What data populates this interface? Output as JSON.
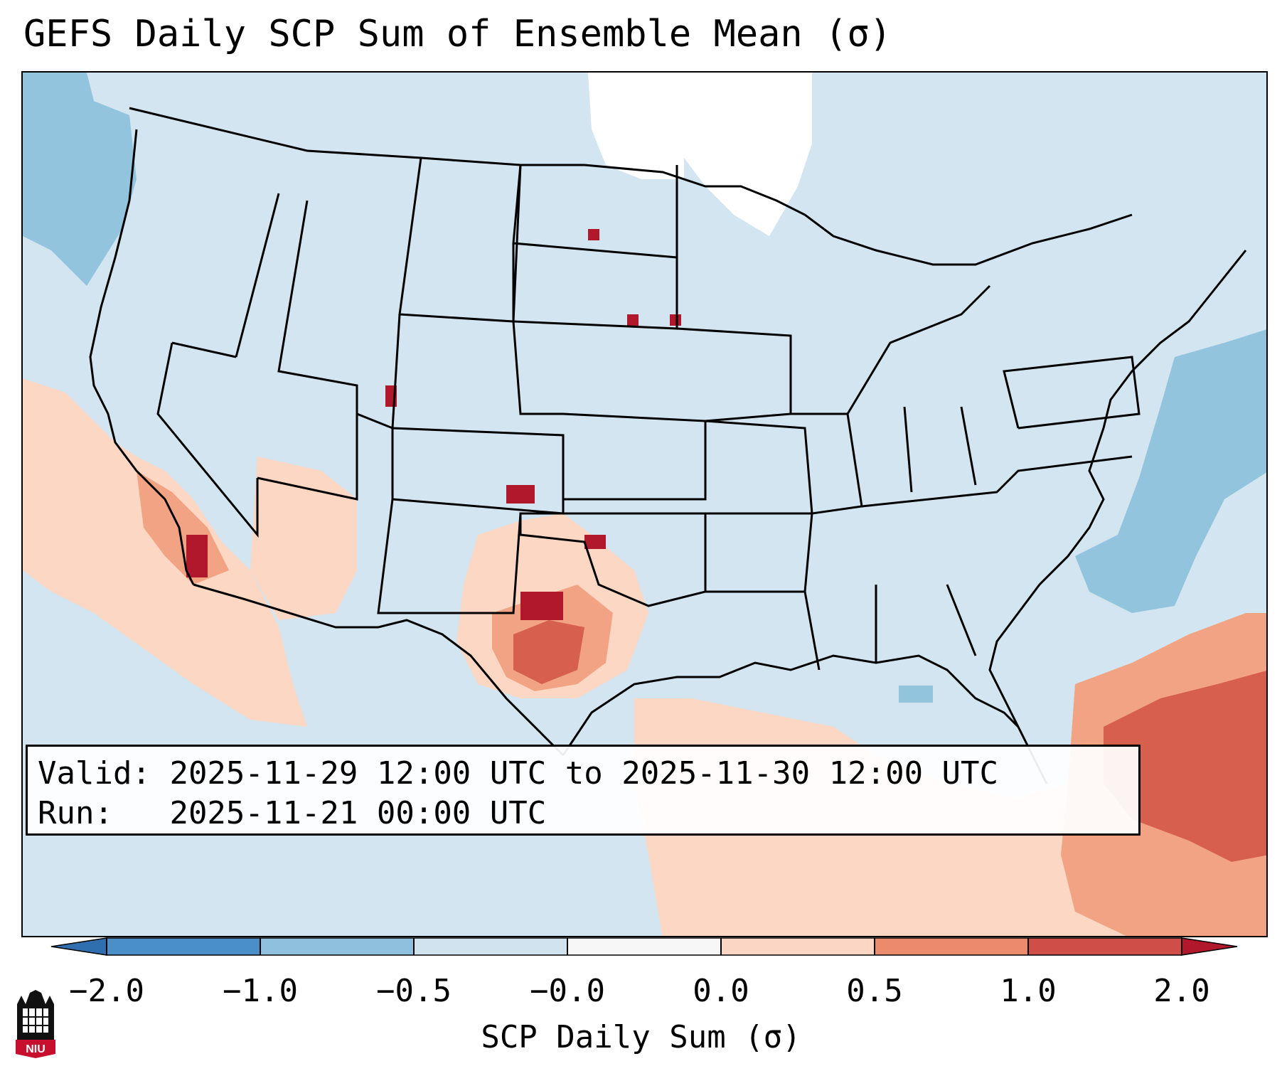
{
  "title": "GEFS Daily SCP Sum of Ensemble Mean (σ)",
  "info": {
    "valid_label": "Valid:",
    "valid_value": "2025-11-29 12:00 UTC to 2025-11-30 12:00 UTC",
    "run_label": "Run:",
    "run_value": "2025-11-21 00:00 UTC"
  },
  "colorbar": {
    "label": "SCP Daily Sum (σ)",
    "ticks": [
      "−2.0",
      "−1.0",
      "−0.5",
      "−0.0",
      "0.0",
      "0.5",
      "1.0",
      "2.0"
    ],
    "bin_colors": [
      "#4a8fc7",
      "#8fc1de",
      "#d0e3ef",
      "#f7f7f7",
      "#fbd6c4",
      "#eb8b6c",
      "#cf4f48"
    ],
    "under_color": "#2f6fb0",
    "over_color": "#b2182b"
  },
  "map": {
    "domain": "Continental United States",
    "colors": {
      "ocean_light": "#d3e5f0",
      "blue_mid": "#92c4de",
      "white": "#ffffff",
      "pink": "#fcd7c4",
      "salmon": "#f2a384",
      "red": "#d6604d",
      "dark_red": "#b2182b",
      "border": "#000000"
    }
  },
  "logo": {
    "text": "NIU"
  }
}
